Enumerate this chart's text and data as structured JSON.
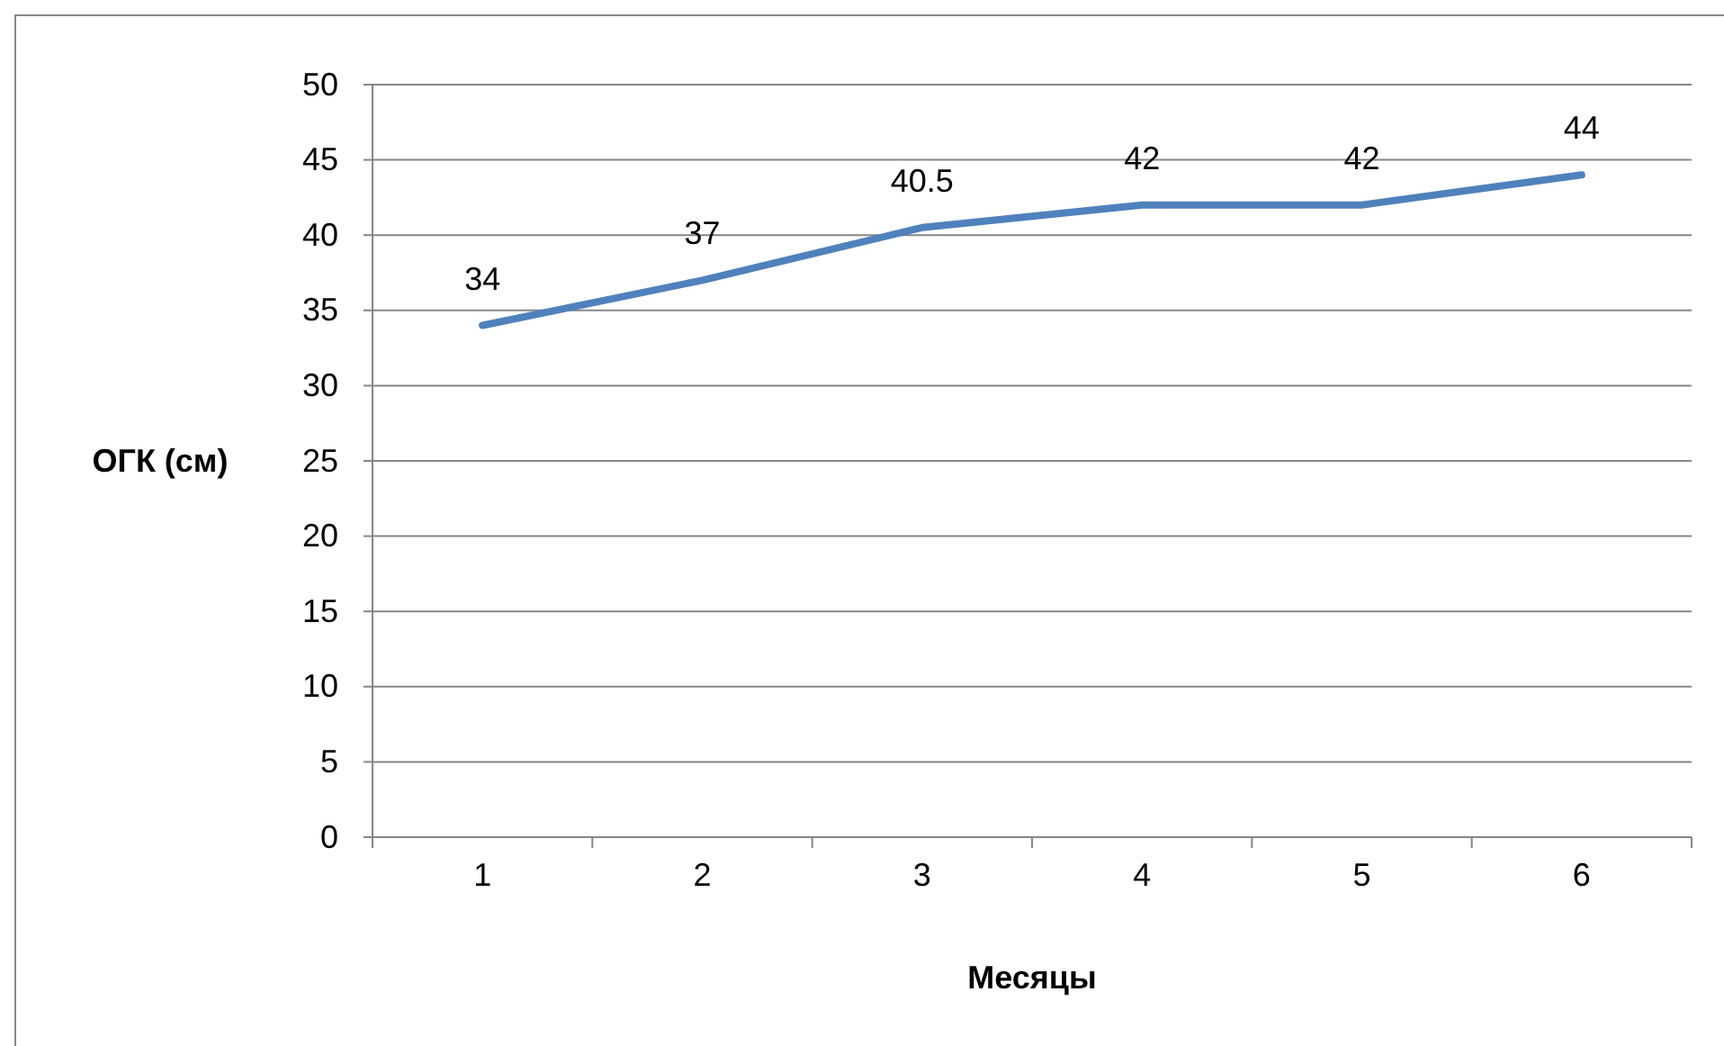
{
  "chart_data": {
    "type": "line",
    "xlabel": "Месяцы",
    "ylabel": "ОГК (см)",
    "categories": [
      "1",
      "2",
      "3",
      "4",
      "5",
      "6"
    ],
    "series": [
      {
        "color": "#4f81bd",
        "values": [
          34,
          37,
          40.5,
          42,
          42,
          44
        ]
      }
    ],
    "ylim": [
      0,
      50
    ],
    "yticks": [
      0,
      5,
      10,
      15,
      20,
      25,
      30,
      35,
      40,
      45,
      50
    ],
    "grid": "y",
    "data_labels": true,
    "marker": "none",
    "line_style": "solid"
  }
}
